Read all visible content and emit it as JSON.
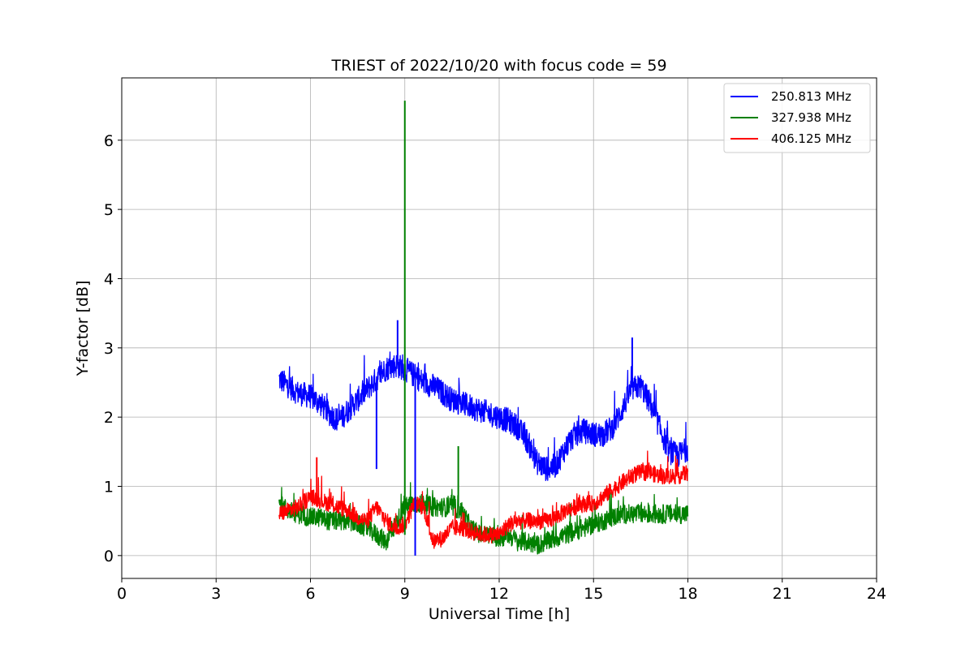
{
  "chart_data": {
    "type": "line",
    "title": "TRIEST of 2022/10/20 with focus code = 59",
    "xlabel": "Universal Time [h]",
    "ylabel": "Y-factor [dB]",
    "xlim": [
      0,
      24
    ],
    "ylim": [
      -0.33,
      6.9
    ],
    "xticks": [
      0,
      3,
      6,
      9,
      12,
      15,
      18,
      21,
      24
    ],
    "yticks": [
      0,
      1,
      2,
      3,
      4,
      5,
      6
    ],
    "grid": true,
    "legend_position": "top-right",
    "series": [
      {
        "name": "250.813 MHz",
        "color": "#0000ff",
        "noise": 0.18,
        "x": [
          5.0,
          5.3,
          5.6,
          6.0,
          6.3,
          6.6,
          6.9,
          7.2,
          7.5,
          7.8,
          8.1,
          8.4,
          8.7,
          9.0,
          9.3,
          9.6,
          9.9,
          10.2,
          10.5,
          10.8,
          11.1,
          11.4,
          11.7,
          12.0,
          12.3,
          12.6,
          12.9,
          13.2,
          13.5,
          13.8,
          14.1,
          14.4,
          14.7,
          15.0,
          15.3,
          15.6,
          15.9,
          16.2,
          16.5,
          16.8,
          17.1,
          17.4,
          17.7,
          18.0
        ],
        "y": [
          2.55,
          2.45,
          2.35,
          2.3,
          2.2,
          2.05,
          1.95,
          2.1,
          2.25,
          2.4,
          2.55,
          2.7,
          2.75,
          2.7,
          2.6,
          2.5,
          2.45,
          2.35,
          2.25,
          2.2,
          2.15,
          2.1,
          2.05,
          2.0,
          1.95,
          1.85,
          1.65,
          1.35,
          1.25,
          1.3,
          1.55,
          1.75,
          1.8,
          1.75,
          1.75,
          1.85,
          2.1,
          2.4,
          2.45,
          2.2,
          1.85,
          1.5,
          1.45,
          1.55
        ]
      },
      {
        "name": "327.938 MHz",
        "color": "#008000",
        "noise": 0.14,
        "x": [
          5.0,
          5.3,
          5.6,
          6.0,
          6.3,
          6.6,
          6.9,
          7.2,
          7.5,
          7.8,
          8.1,
          8.4,
          8.7,
          9.0,
          9.3,
          9.6,
          9.9,
          10.2,
          10.5,
          10.8,
          11.1,
          11.4,
          11.7,
          12.0,
          12.3,
          12.6,
          12.9,
          13.2,
          13.5,
          13.8,
          14.1,
          14.4,
          14.7,
          15.0,
          15.3,
          15.6,
          15.9,
          16.2,
          16.5,
          16.8,
          17.1,
          17.4,
          17.7,
          18.0
        ],
        "y": [
          0.75,
          0.65,
          0.6,
          0.55,
          0.55,
          0.5,
          0.5,
          0.5,
          0.45,
          0.4,
          0.3,
          0.2,
          0.45,
          0.7,
          0.75,
          0.75,
          0.7,
          0.7,
          0.7,
          0.65,
          0.4,
          0.3,
          0.3,
          0.25,
          0.3,
          0.2,
          0.2,
          0.15,
          0.2,
          0.25,
          0.3,
          0.35,
          0.4,
          0.45,
          0.5,
          0.55,
          0.6,
          0.6,
          0.6,
          0.6,
          0.6,
          0.6,
          0.6,
          0.6
        ]
      },
      {
        "name": "406.125 MHz",
        "color": "#ff0000",
        "noise": 0.12,
        "x": [
          5.0,
          5.3,
          5.6,
          6.0,
          6.3,
          6.6,
          6.9,
          7.2,
          7.5,
          7.8,
          8.1,
          8.4,
          8.7,
          9.0,
          9.3,
          9.6,
          9.9,
          10.2,
          10.5,
          10.8,
          11.1,
          11.4,
          11.7,
          12.0,
          12.3,
          12.6,
          12.9,
          13.2,
          13.5,
          13.8,
          14.1,
          14.4,
          14.7,
          15.0,
          15.3,
          15.6,
          15.9,
          16.2,
          16.5,
          16.8,
          17.1,
          17.4,
          17.7,
          18.0
        ],
        "y": [
          0.6,
          0.65,
          0.7,
          0.85,
          0.8,
          0.75,
          0.7,
          0.65,
          0.55,
          0.5,
          0.7,
          0.5,
          0.4,
          0.45,
          0.75,
          0.7,
          0.2,
          0.25,
          0.4,
          0.4,
          0.35,
          0.3,
          0.3,
          0.3,
          0.45,
          0.5,
          0.5,
          0.5,
          0.5,
          0.55,
          0.65,
          0.7,
          0.75,
          0.75,
          0.85,
          0.95,
          1.05,
          1.15,
          1.2,
          1.2,
          1.15,
          1.15,
          1.15,
          1.2
        ]
      }
    ],
    "spikes": [
      {
        "series": 1,
        "x": 9.0,
        "y0": 0.3,
        "y1": 6.57
      },
      {
        "series": 0,
        "x": 9.33,
        "y0": 2.6,
        "y1": 0.0
      },
      {
        "series": 0,
        "x": 8.1,
        "y0": 2.5,
        "y1": 1.25
      },
      {
        "series": 0,
        "x": 8.77,
        "y0": 2.8,
        "y1": 3.4
      },
      {
        "series": 0,
        "x": 16.23,
        "y0": 2.5,
        "y1": 3.15
      },
      {
        "series": 1,
        "x": 10.7,
        "y0": 0.7,
        "y1": 1.58
      },
      {
        "series": 2,
        "x": 6.2,
        "y0": 0.85,
        "y1": 1.42
      }
    ]
  }
}
